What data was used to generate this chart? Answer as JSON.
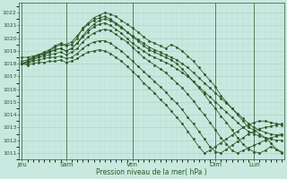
{
  "title": "",
  "xlabel": "Pression niveau de la mer( hPa )",
  "bg_color": "#c8e8e0",
  "grid_color": "#a8ccc0",
  "line_color": "#2d5a27",
  "ylim": [
    1010.5,
    1022.8
  ],
  "yticks": [
    1011,
    1012,
    1013,
    1014,
    1015,
    1016,
    1017,
    1018,
    1019,
    1020,
    1021,
    1022
  ],
  "xtick_labels": [
    "Jeu",
    "Sam",
    "Ven",
    "Dim",
    "Lun"
  ],
  "xtick_positions": [
    0,
    8,
    20,
    35,
    42
  ],
  "total_points": 48,
  "lines": [
    [
      1018.0,
      1018.2,
      1018.5,
      1018.7,
      1018.8,
      1019.0,
      1019.3,
      1019.5,
      1019.4,
      1019.5,
      1020.0,
      1020.8,
      1021.2,
      1021.6,
      1021.8,
      1022.0,
      1021.9,
      1021.7,
      1021.4,
      1021.1,
      1020.8,
      1020.5,
      1020.1,
      1019.8,
      1019.6,
      1019.4,
      1019.2,
      1019.5,
      1019.3,
      1019.0,
      1018.6,
      1018.2,
      1017.7,
      1017.2,
      1016.7,
      1016.2,
      1015.5,
      1015.0,
      1014.5,
      1014.0,
      1013.5,
      1013.0,
      1012.8,
      1012.5,
      1012.2,
      1011.8,
      1011.3,
      1011.0
    ],
    [
      1018.0,
      1018.2,
      1018.4,
      1018.6,
      1018.7,
      1018.9,
      1019.1,
      1019.2,
      1019.0,
      1019.2,
      1019.6,
      1020.2,
      1020.7,
      1021.1,
      1021.4,
      1021.5,
      1021.4,
      1021.1,
      1020.8,
      1020.5,
      1020.1,
      1019.8,
      1019.4,
      1019.1,
      1018.9,
      1018.7,
      1018.5,
      1018.3,
      1018.0,
      1017.6,
      1017.1,
      1016.6,
      1016.1,
      1015.6,
      1015.0,
      1014.5,
      1013.9,
      1013.4,
      1012.8,
      1012.2,
      1011.7,
      1011.3,
      1011.1,
      1011.0,
      1011.2,
      1011.5,
      1011.3,
      1011.1
    ],
    [
      1018.0,
      1018.1,
      1018.3,
      1018.5,
      1018.6,
      1018.7,
      1018.8,
      1018.9,
      1018.7,
      1018.9,
      1019.2,
      1019.7,
      1020.1,
      1020.4,
      1020.6,
      1020.7,
      1020.6,
      1020.3,
      1020.0,
      1019.7,
      1019.3,
      1018.9,
      1018.5,
      1018.2,
      1017.9,
      1017.6,
      1017.3,
      1016.9,
      1016.5,
      1016.1,
      1015.6,
      1015.1,
      1014.5,
      1014.0,
      1013.4,
      1012.8,
      1012.2,
      1011.7,
      1011.2,
      1011.0,
      1011.2,
      1011.4,
      1011.6,
      1011.8,
      1012.0,
      1012.2,
      1012.3,
      1012.4
    ],
    [
      1018.0,
      1018.0,
      1018.2,
      1018.3,
      1018.4,
      1018.5,
      1018.5,
      1018.6,
      1018.4,
      1018.5,
      1018.8,
      1019.2,
      1019.5,
      1019.7,
      1019.8,
      1019.8,
      1019.6,
      1019.3,
      1019.0,
      1018.6,
      1018.2,
      1017.8,
      1017.4,
      1017.0,
      1016.6,
      1016.2,
      1015.8,
      1015.3,
      1014.9,
      1014.4,
      1013.8,
      1013.3,
      1012.7,
      1012.1,
      1011.5,
      1011.1,
      1011.0,
      1011.3,
      1011.6,
      1011.9,
      1012.2,
      1012.5,
      1012.7,
      1012.9,
      1013.0,
      1013.1,
      1013.2,
      1013.3
    ],
    [
      1018.0,
      1017.9,
      1018.0,
      1018.1,
      1018.1,
      1018.2,
      1018.2,
      1018.3,
      1018.1,
      1018.2,
      1018.4,
      1018.7,
      1018.9,
      1019.0,
      1019.1,
      1019.0,
      1018.8,
      1018.5,
      1018.2,
      1017.8,
      1017.4,
      1017.0,
      1016.5,
      1016.1,
      1015.7,
      1015.2,
      1014.8,
      1014.3,
      1013.8,
      1013.3,
      1012.7,
      1012.1,
      1011.5,
      1011.0,
      1011.2,
      1011.5,
      1011.8,
      1012.1,
      1012.4,
      1012.7,
      1013.0,
      1013.2,
      1013.4,
      1013.5,
      1013.5,
      1013.4,
      1013.3,
      1013.2
    ],
    [
      1018.5,
      1018.5,
      1018.6,
      1018.7,
      1018.8,
      1018.9,
      1019.1,
      1019.2,
      1019.0,
      1019.2,
      1019.6,
      1020.1,
      1020.5,
      1020.9,
      1021.1,
      1021.2,
      1021.0,
      1020.7,
      1020.4,
      1020.0,
      1019.6,
      1019.3,
      1019.0,
      1018.7,
      1018.5,
      1018.3,
      1018.1,
      1017.9,
      1017.6,
      1017.3,
      1017.0,
      1016.6,
      1016.2,
      1015.8,
      1015.4,
      1015.0,
      1014.6,
      1014.2,
      1013.8,
      1013.4,
      1013.0,
      1012.7,
      1012.5,
      1012.3,
      1012.2,
      1012.1,
      1012.0,
      1012.0
    ],
    [
      1018.2,
      1018.3,
      1018.5,
      1018.7,
      1018.9,
      1019.1,
      1019.4,
      1019.6,
      1019.5,
      1019.7,
      1020.2,
      1020.7,
      1021.1,
      1021.4,
      1021.6,
      1021.7,
      1021.5,
      1021.2,
      1020.9,
      1020.5,
      1020.2,
      1019.9,
      1019.6,
      1019.3,
      1019.1,
      1018.9,
      1018.7,
      1018.5,
      1018.3,
      1018.0,
      1017.7,
      1017.3,
      1016.9,
      1016.5,
      1016.1,
      1015.7,
      1015.3,
      1014.9,
      1014.5,
      1014.1,
      1013.7,
      1013.3,
      1013.0,
      1012.8,
      1012.6,
      1012.5,
      1012.4,
      1012.5
    ]
  ]
}
